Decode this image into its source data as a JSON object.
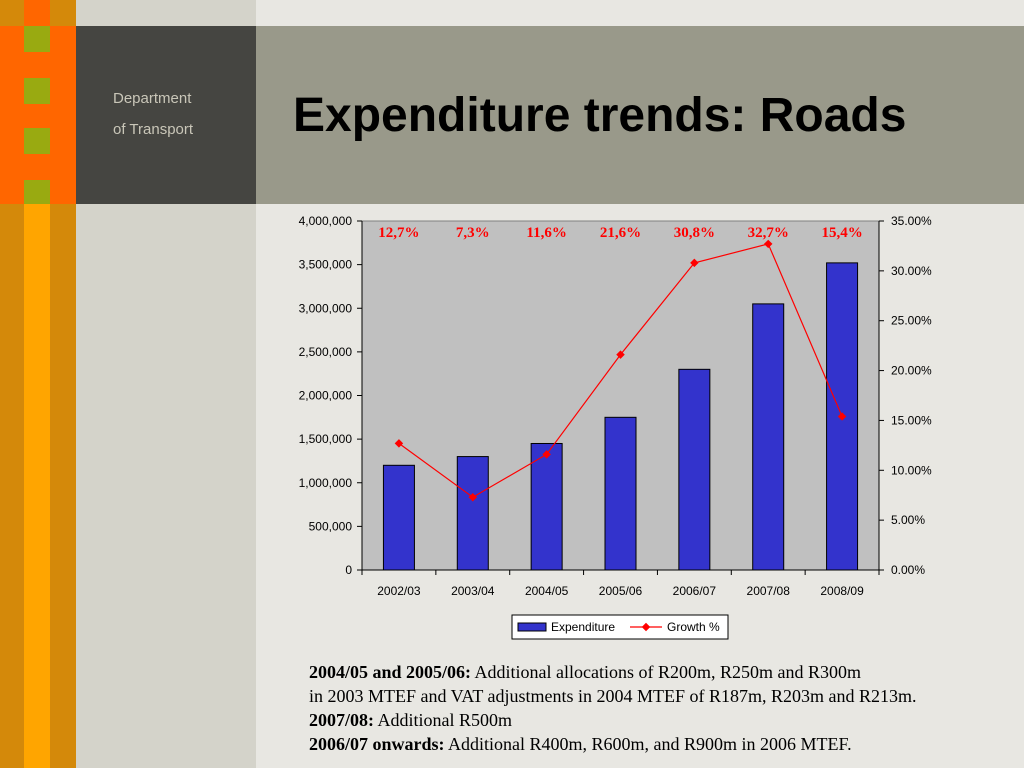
{
  "header": {
    "dept_line1": "Department",
    "dept_line2": "of Transport",
    "title": "Expenditure trends: Roads"
  },
  "colors": {
    "orange": "#ff6600",
    "amber": "#ffa500",
    "olive_green": "#99aa11",
    "dark_box": "#454541",
    "title_band": "#99998a",
    "bar_fill": "#3333cc",
    "growth_line": "#ff0000"
  },
  "chart_data": {
    "type": "bar",
    "categories": [
      "2002/03",
      "2003/04",
      "2004/05",
      "2005/06",
      "2006/07",
      "2007/08",
      "2008/09"
    ],
    "series": [
      {
        "name": "Expenditure",
        "type": "bar",
        "axis": "left",
        "values": [
          1200000,
          1300000,
          1450000,
          1750000,
          2300000,
          3050000,
          3520000
        ]
      },
      {
        "name": "Growth %",
        "type": "line",
        "axis": "right",
        "values": [
          12.7,
          7.3,
          11.6,
          21.6,
          30.8,
          32.7,
          15.4
        ]
      }
    ],
    "data_labels": [
      "12,7%",
      "7,3%",
      "11,6%",
      "21,6%",
      "30,8%",
      "32,7%",
      "15,4%"
    ],
    "ylim": [
      0,
      4000000
    ],
    "y_ticks": [
      "0",
      "500,000",
      "1,000,000",
      "1,500,000",
      "2,000,000",
      "2,500,000",
      "3,000,000",
      "3,500,000",
      "4,000,000"
    ],
    "y2lim": [
      0,
      35
    ],
    "y2_ticks": [
      "0.00%",
      "5.00%",
      "10.00%",
      "15.00%",
      "20.00%",
      "25.00%",
      "30.00%",
      "35.00%"
    ],
    "legend_position": "bottom",
    "grid": false
  },
  "notes": [
    {
      "bold": "2004/05 and 2005/06:",
      "text": " Additional allocations of R200m, R250m and R300m"
    },
    {
      "bold": "",
      "text": "in 2003 MTEF and VAT adjustments in 2004 MTEF of R187m, R203m and R213m."
    },
    {
      "bold": "2007/08:",
      "text": " Additional R500m"
    },
    {
      "bold": "2006/07 onwards:",
      "text": " Additional R400m, R600m, and R900m in 2006 MTEF."
    }
  ]
}
